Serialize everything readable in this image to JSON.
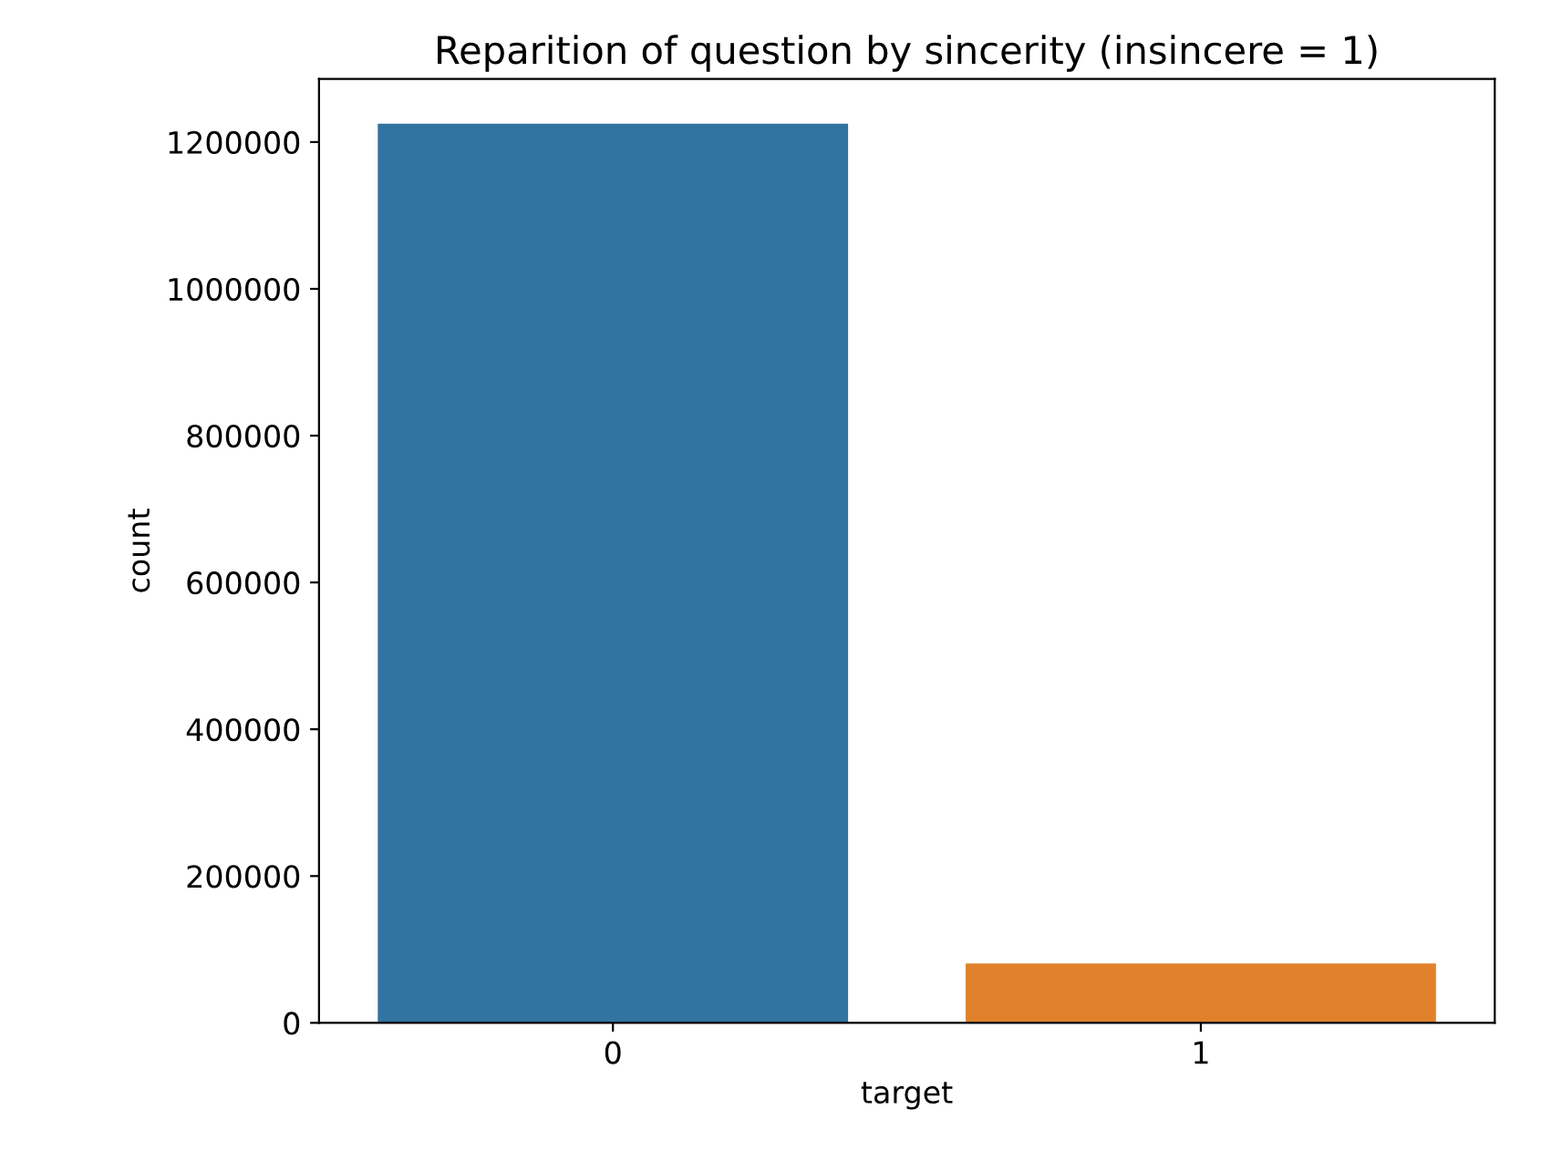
{
  "chart_data": {
    "type": "bar",
    "title": "Reparition of question by sincerity (insincere = 1)",
    "xlabel": "target",
    "ylabel": "count",
    "categories": [
      "0",
      "1"
    ],
    "values": [
      1225000,
      81000
    ],
    "colors": [
      "#3274a1",
      "#e1812c"
    ],
    "ylim": [
      0,
      1286000
    ],
    "yticks": [
      0,
      200000,
      400000,
      600000,
      800000,
      1000000,
      1200000
    ],
    "grid": false,
    "legend": false
  }
}
